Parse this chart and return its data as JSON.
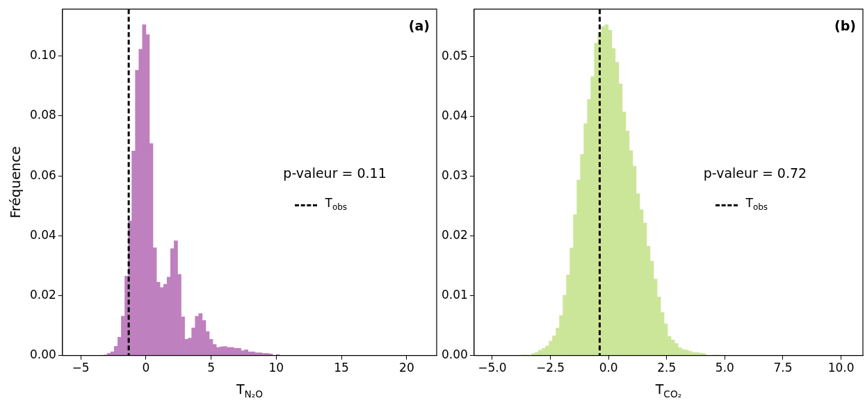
{
  "chart_data": [
    {
      "type": "histogram",
      "xlabel": "T$_{N₂O}$",
      "ylabel": "Fréquence",
      "color": "#bf80bf",
      "bins": [
        -3.24,
        -2.97,
        -2.7,
        -2.43,
        -2.16,
        -1.89,
        -1.62,
        -1.35,
        -1.08,
        -0.81,
        -0.54,
        -0.27,
        0,
        0.27,
        0.54,
        0.81,
        1.08,
        1.35,
        1.62,
        1.89,
        2.16,
        2.43,
        2.7,
        2.97,
        3.24,
        3.51,
        3.78,
        4.05,
        4.32,
        4.59,
        4.86,
        5.13,
        5.4,
        5.67,
        5.94,
        6.21,
        6.48,
        6.75,
        7.02,
        7.29,
        7.56,
        7.83,
        8.1,
        8.37,
        8.64,
        8.91,
        9.18,
        9.45,
        9.72,
        9.99,
        10.26
      ],
      "values": [
        0.0002,
        0.0007,
        0.0012,
        0.0031,
        0.0061,
        0.0131,
        0.0265,
        0.0449,
        0.0683,
        0.0953,
        0.1023,
        0.1105,
        0.1072,
        0.0708,
        0.036,
        0.0245,
        0.0227,
        0.0238,
        0.0262,
        0.0357,
        0.0383,
        0.0271,
        0.0129,
        0.0054,
        0.0058,
        0.0092,
        0.0131,
        0.014,
        0.0117,
        0.008,
        0.0054,
        0.0037,
        0.0027,
        0.0029,
        0.003,
        0.0027,
        0.0027,
        0.0024,
        0.0024,
        0.0016,
        0.0019,
        0.0012,
        0.0012,
        0.0009,
        0.0009,
        0.0007,
        0.0007,
        0.0005,
        null,
        0.0003
      ],
      "xlim": [
        -6.4,
        22.3
      ],
      "xticks": [
        {
          "value": -5,
          "label": "−5"
        },
        0,
        5,
        10,
        15,
        20
      ],
      "ylim": [
        0,
        0.1157
      ],
      "yticks": [
        {
          "value": 0,
          "label": "0.00"
        },
        {
          "value": 0.02,
          "label": "0.02"
        },
        {
          "value": 0.04,
          "label": "0.04"
        },
        {
          "value": 0.06,
          "label": "0.06"
        },
        {
          "value": 0.08,
          "label": "0.08"
        },
        {
          "value": 0.1,
          "label": "0.10"
        }
      ],
      "ref_lines": [
        {
          "axis": "x",
          "value": -1.32,
          "label": "T$_{obs}$",
          "color": "#000000",
          "line_style": "dashed"
        }
      ],
      "annotations": [
        "(a)",
        "p-valeur = 0.11"
      ],
      "legend": "right",
      "grid": false
    },
    {
      "type": "histogram",
      "xlabel": "T$_{CO₂}$",
      "color": "#cce699",
      "bins": [
        -3.76,
        -3.61,
        -3.46,
        -3.31,
        -3.16,
        -3.01,
        -2.86,
        -2.71,
        -2.56,
        -2.41,
        -2.26,
        -2.11,
        -1.96,
        -1.81,
        -1.66,
        -1.51,
        -1.36,
        -1.21,
        -1.06,
        -0.91,
        -0.76,
        -0.61,
        -0.46,
        -0.31,
        -0.16,
        -0.01,
        0.14,
        0.29,
        0.44,
        0.59,
        0.74,
        0.89,
        1.04,
        1.19,
        1.34,
        1.49,
        1.64,
        1.79,
        1.94,
        2.09,
        2.24,
        2.39,
        2.54,
        2.69,
        2.84,
        2.99,
        3.14,
        3.29,
        3.44,
        3.59,
        3.74,
        3.89,
        4.04,
        4.19,
        4.34,
        4.49,
        4.64,
        4.79
      ],
      "values": [
        0.0001,
        0.0001,
        null,
        0.0003,
        0.0005,
        0.0009,
        0.0012,
        0.0016,
        0.0024,
        0.0033,
        0.0046,
        0.0067,
        0.0101,
        0.0135,
        0.018,
        0.0236,
        0.0294,
        0.0337,
        0.0388,
        0.0429,
        0.0467,
        0.0523,
        0.0541,
        0.0551,
        0.0554,
        0.0545,
        0.0514,
        0.0491,
        0.0455,
        0.0408,
        0.0376,
        0.0343,
        0.0317,
        0.0271,
        0.0244,
        0.0222,
        0.0183,
        0.0158,
        0.0128,
        0.0098,
        0.0072,
        0.0053,
        0.0032,
        0.0026,
        0.002,
        0.0013,
        0.001,
        0.0009,
        0.0007,
        0.0005,
        0.0005,
        0.0004,
        0.0003,
        null,
        null,
        0.0001,
        0.0001
      ],
      "xlim": [
        -5.78,
        10.94
      ],
      "xticks": [
        {
          "value": -5,
          "label": "−5.0"
        },
        {
          "value": -2.5,
          "label": "−2.5"
        },
        {
          "value": 0,
          "label": "0.0"
        },
        {
          "value": 2.5,
          "label": "2.5"
        },
        {
          "value": 5,
          "label": "5.0"
        },
        {
          "value": 7.5,
          "label": "7.5"
        },
        {
          "value": 10,
          "label": "10.0"
        }
      ],
      "ylim": [
        0,
        0.058
      ],
      "yticks": [
        {
          "value": 0,
          "label": "0.00"
        },
        {
          "value": 0.01,
          "label": "0.01"
        },
        {
          "value": 0.02,
          "label": "0.02"
        },
        {
          "value": 0.03,
          "label": "0.03"
        },
        {
          "value": 0.04,
          "label": "0.04"
        },
        {
          "value": 0.05,
          "label": "0.05"
        }
      ],
      "ref_lines": [
        {
          "axis": "x",
          "value": -0.38,
          "label": "T$_{obs}$",
          "color": "#000000",
          "line_style": "dashed"
        }
      ],
      "annotations": [
        "(b)",
        "p-valeur = 0.72"
      ],
      "legend": "right",
      "grid": false
    }
  ]
}
